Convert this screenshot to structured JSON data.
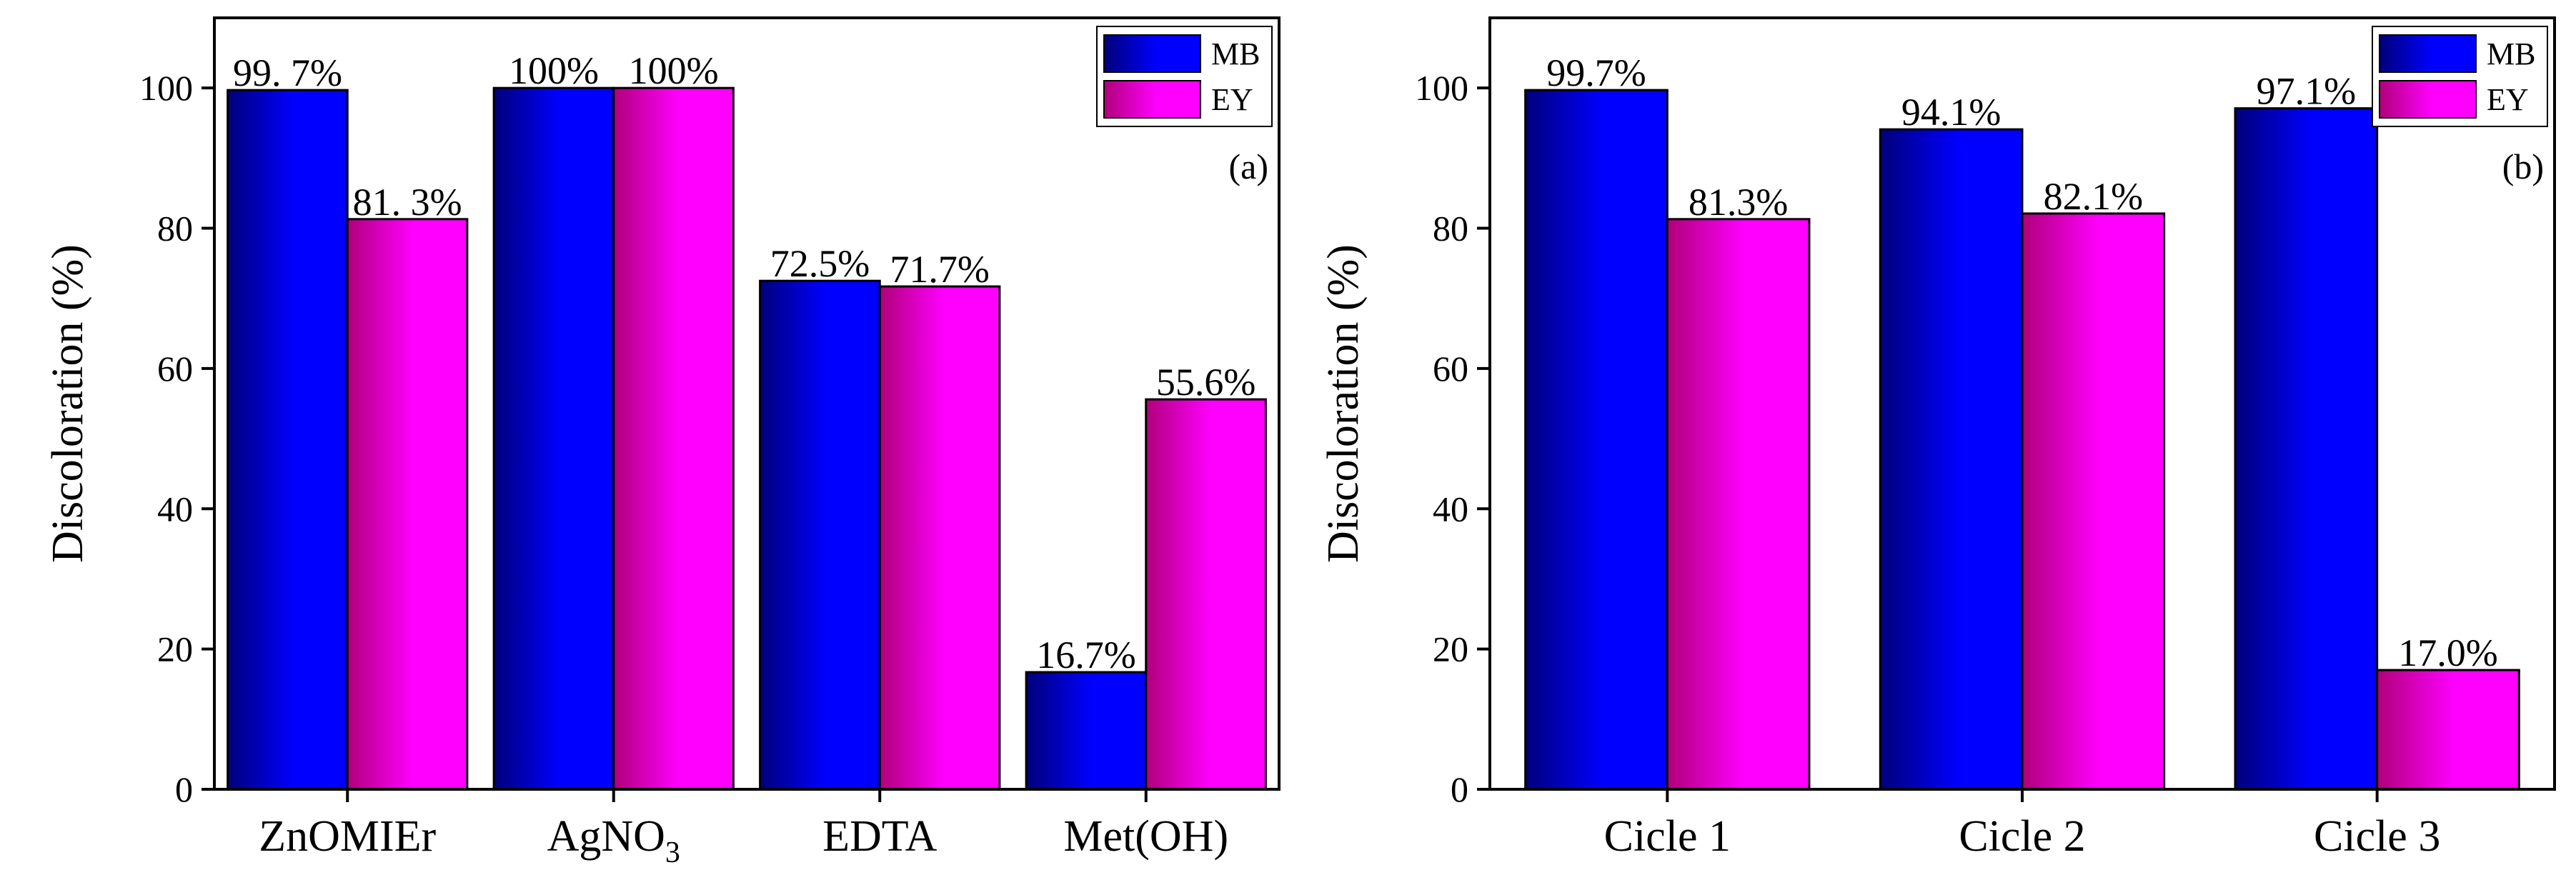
{
  "colors": {
    "MB": "#0000ff",
    "EY": "#ff00ff",
    "axis": "#000000"
  },
  "chart_data": [
    {
      "type": "bar",
      "panel": "(a)",
      "ylabel": "Discoloration (%)",
      "ylim": [
        0,
        110
      ],
      "yticks": [
        0,
        20,
        40,
        60,
        80,
        100
      ],
      "legend_position": "top-right",
      "categories": [
        {
          "main": "ZnOMIEr",
          "sub": "",
          "after": ""
        },
        {
          "main": "AgNO",
          "sub": "3",
          "after": ""
        },
        {
          "main": "EDTA",
          "sub": "",
          "after": ""
        },
        {
          "main": "Met(OH)",
          "sub": "",
          "after": ""
        }
      ],
      "series": [
        {
          "name": "MB",
          "values": [
            99.7,
            100,
            72.5,
            16.7
          ],
          "labels": [
            "99. 7%",
            "100%",
            "72.5%",
            "16.7%"
          ]
        },
        {
          "name": "EY",
          "values": [
            81.3,
            100,
            71.7,
            55.6
          ],
          "labels": [
            "81. 3%",
            "100%",
            "71.7%",
            "55.6%"
          ]
        }
      ]
    },
    {
      "type": "bar",
      "panel": "(b)",
      "ylabel": "Discoloration (%)",
      "ylim": [
        0,
        110
      ],
      "yticks": [
        0,
        20,
        40,
        60,
        80,
        100
      ],
      "legend_position": "top-right",
      "categories": [
        {
          "main": "Cicle 1",
          "sub": "",
          "after": ""
        },
        {
          "main": "Cicle 2",
          "sub": "",
          "after": ""
        },
        {
          "main": "Cicle 3",
          "sub": "",
          "after": ""
        }
      ],
      "series": [
        {
          "name": "MB",
          "values": [
            99.7,
            94.1,
            97.1
          ],
          "labels": [
            "99.7%",
            "94.1%",
            "97.1%"
          ]
        },
        {
          "name": "EY",
          "values": [
            81.3,
            82.1,
            17.0
          ],
          "labels": [
            "81.3%",
            "82.1%",
            "17.0%"
          ]
        }
      ]
    }
  ]
}
